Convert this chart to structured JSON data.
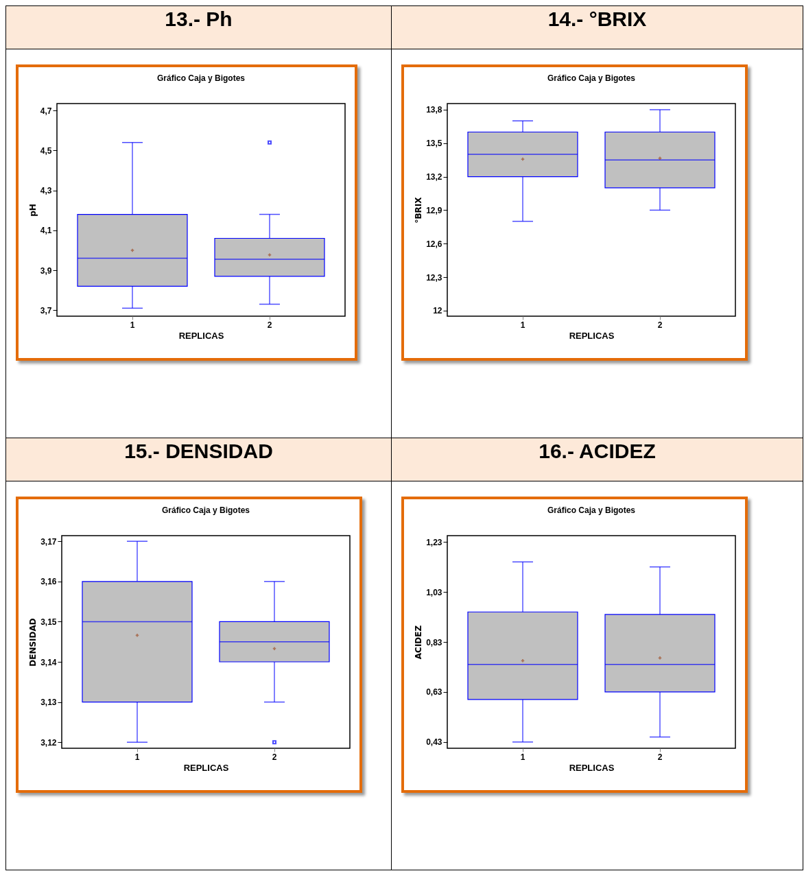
{
  "chart_data": [
    {
      "type": "box",
      "title": "13.- Ph",
      "subtitle": "Gráfico Caja y Bigotes",
      "xlabel": "REPLICAS",
      "ylabel": "pH",
      "categories": [
        "1",
        "2"
      ],
      "boxes": [
        {
          "low": 3.71,
          "q1": 3.82,
          "median": 3.96,
          "q3": 4.18,
          "high": 4.54,
          "mean": 4.0
        },
        {
          "low": 3.73,
          "q1": 3.87,
          "median": 3.955,
          "q3": 4.06,
          "high": 4.18,
          "mean": 3.977,
          "outliers": [
            4.54
          ]
        }
      ],
      "ylim": [
        3.67,
        4.735
      ],
      "yticks": [
        {
          "value": 3.7,
          "label": "3,7"
        },
        {
          "value": 3.9,
          "label": "3,9"
        },
        {
          "value": 4.1,
          "label": "4,1"
        },
        {
          "value": 4.3,
          "label": "4,3"
        },
        {
          "value": 4.5,
          "label": "4,5"
        },
        {
          "value": 4.7,
          "label": "4,7"
        }
      ]
    },
    {
      "type": "box",
      "title": "14.- °BRIX",
      "subtitle": "Gráfico Caja y Bigotes",
      "xlabel": "REPLICAS",
      "ylabel": "°BRIX",
      "categories": [
        "1",
        "2"
      ],
      "boxes": [
        {
          "low": 12.8,
          "q1": 13.2,
          "median": 13.4,
          "q3": 13.6,
          "high": 13.7,
          "mean": 13.357
        },
        {
          "low": 12.9,
          "q1": 13.1,
          "median": 13.35,
          "q3": 13.6,
          "high": 13.8,
          "mean": 13.365
        }
      ],
      "ylim": [
        11.95,
        13.855
      ],
      "yticks": [
        12,
        {
          "value": 12.3,
          "label": "12,3"
        },
        {
          "value": 12.6,
          "label": "12,6"
        },
        {
          "value": 12.9,
          "label": "12,9"
        },
        {
          "value": 13.2,
          "label": "13,2"
        },
        {
          "value": 13.5,
          "label": "13,5"
        },
        {
          "value": 13.8,
          "label": "13,8"
        }
      ]
    },
    {
      "type": "box",
      "title": "15.- DENSIDAD",
      "subtitle": "Gráfico Caja y Bigotes",
      "xlabel": "REPLICAS",
      "ylabel": "DENSIDAD",
      "categories": [
        "1",
        "2"
      ],
      "boxes": [
        {
          "low": 3.12,
          "q1": 3.13,
          "median": 3.15,
          "q3": 3.16,
          "high": 3.17,
          "mean": 3.1466
        },
        {
          "low": 3.13,
          "q1": 3.14,
          "median": 3.145,
          "q3": 3.15,
          "high": 3.16,
          "mean": 3.1433,
          "outliers": [
            3.12
          ]
        }
      ],
      "ylim": [
        3.1185,
        3.1714
      ],
      "yticks": [
        {
          "value": 3.12,
          "label": "3,12"
        },
        {
          "value": 3.13,
          "label": "3,13"
        },
        {
          "value": 3.14,
          "label": "3,14"
        },
        {
          "value": 3.15,
          "label": "3,15"
        },
        {
          "value": 3.16,
          "label": "3,16"
        },
        {
          "value": 3.17,
          "label": "3,17"
        }
      ]
    },
    {
      "type": "box",
      "title": "16.- ACIDEZ",
      "subtitle": "Gráfico Caja y Bigotes",
      "xlabel": "REPLICAS",
      "ylabel": "ACIDEZ",
      "categories": [
        "1",
        "2"
      ],
      "boxes": [
        {
          "low": 0.43,
          "q1": 0.6,
          "median": 0.74,
          "q3": 0.95,
          "high": 1.15,
          "mean": 0.755
        },
        {
          "low": 0.45,
          "q1": 0.63,
          "median": 0.74,
          "q3": 0.94,
          "high": 1.13,
          "mean": 0.766
        }
      ],
      "ylim": [
        0.405,
        1.255
      ],
      "yticks": [
        {
          "value": 0.43,
          "label": "0,43"
        },
        {
          "value": 0.63,
          "label": "0,63"
        },
        {
          "value": 0.83,
          "label": "0,83"
        },
        {
          "value": 1.03,
          "label": "1,03"
        },
        {
          "value": 1.23,
          "label": "1,23"
        }
      ]
    }
  ]
}
